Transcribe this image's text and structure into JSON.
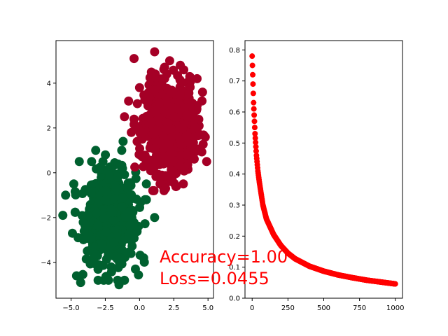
{
  "chart_data": [
    {
      "type": "scatter",
      "title": "",
      "xlabel": "",
      "ylabel": "",
      "xlim": [
        -6.1,
        5.4
      ],
      "ylim": [
        -5.6,
        5.9
      ],
      "xticks": [
        -5.0,
        -2.5,
        0.0,
        2.5,
        5.0
      ],
      "xtick_labels": [
        "−5.0",
        "−2.5",
        "0.0",
        "2.5",
        "5.0"
      ],
      "yticks": [
        -4,
        -2,
        0,
        2,
        4
      ],
      "ytick_labels": [
        "−4",
        "−2",
        "0",
        "2",
        "4"
      ],
      "grid": false,
      "series": [
        {
          "class": 0,
          "color": "#00602f",
          "center": [
            -2.1,
            -2.0
          ],
          "spread": [
            0.9,
            1.0
          ],
          "count": 700,
          "outliers": [
            [
              -5.6,
              -1.9
            ],
            [
              -4.8,
              -0.5
            ],
            [
              -4.6,
              -4.6
            ],
            [
              -4.3,
              -4.9
            ],
            [
              -4.4,
              0.5
            ],
            [
              -3.2,
              1.0
            ],
            [
              -3.5,
              0.5
            ],
            [
              -1.2,
              1.4
            ],
            [
              -1.3,
              1.0
            ],
            [
              0.5,
              -0.5
            ],
            [
              1.1,
              -2.0
            ],
            [
              0.3,
              -3.8
            ],
            [
              -0.3,
              -4.3
            ],
            [
              -1.1,
              -4.8
            ],
            [
              -1.5,
              -5.0
            ],
            [
              -1.6,
              -4.8
            ],
            [
              -5.4,
              -1.0
            ],
            [
              -4.9,
              -2.7
            ],
            [
              0.4,
              -1.2
            ]
          ]
        },
        {
          "class": 1,
          "color": "#a50026",
          "center": [
            2.2,
            2.0
          ],
          "spread": [
            0.9,
            1.0
          ],
          "count": 700,
          "outliers": [
            [
              -0.4,
              5.1
            ],
            [
              1.1,
              5.4
            ],
            [
              2.2,
              5.0
            ],
            [
              4.2,
              4.2
            ],
            [
              4.6,
              3.6
            ],
            [
              4.9,
              0.5
            ],
            [
              -0.8,
              3.2
            ],
            [
              -1.1,
              2.5
            ],
            [
              -0.6,
              1.8
            ],
            [
              0.6,
              0.6
            ],
            [
              1.5,
              -0.5
            ],
            [
              1.9,
              -0.7
            ],
            [
              2.7,
              -0.6
            ],
            [
              3.3,
              0.1
            ],
            [
              4.0,
              1.6
            ],
            [
              0.0,
              3.8
            ]
          ]
        }
      ],
      "annotation": {
        "text_line1": "Accuracy=1.00",
        "text_line2": "Loss=0.0455",
        "color": "#ff0000"
      }
    },
    {
      "type": "scatter",
      "title": "",
      "xlabel": "",
      "ylabel": "",
      "xlim": [
        -50,
        1050
      ],
      "ylim": [
        0.0,
        0.83
      ],
      "xticks": [
        0,
        250,
        500,
        750,
        1000
      ],
      "xtick_labels": [
        "0",
        "250",
        "500",
        "750",
        "1000"
      ],
      "yticks": [
        0.0,
        0.1,
        0.2,
        0.3,
        0.4,
        0.5,
        0.6,
        0.7,
        0.8
      ],
      "ytick_labels": [
        "0.0",
        "0.1",
        "0.2",
        "0.3",
        "0.4",
        "0.5",
        "0.6",
        "0.7",
        "0.8"
      ],
      "grid": false,
      "marker_color": "#ff0000",
      "series": [
        {
          "x": [
            0,
            10,
            20,
            30,
            40,
            50,
            75,
            100,
            150,
            200,
            250,
            300,
            400,
            500,
            600,
            700,
            800,
            900,
            1000
          ],
          "y": [
            0.78,
            0.63,
            0.53,
            0.46,
            0.41,
            0.375,
            0.3,
            0.255,
            0.205,
            0.17,
            0.145,
            0.127,
            0.103,
            0.087,
            0.075,
            0.066,
            0.058,
            0.052,
            0.046
          ]
        }
      ]
    }
  ]
}
